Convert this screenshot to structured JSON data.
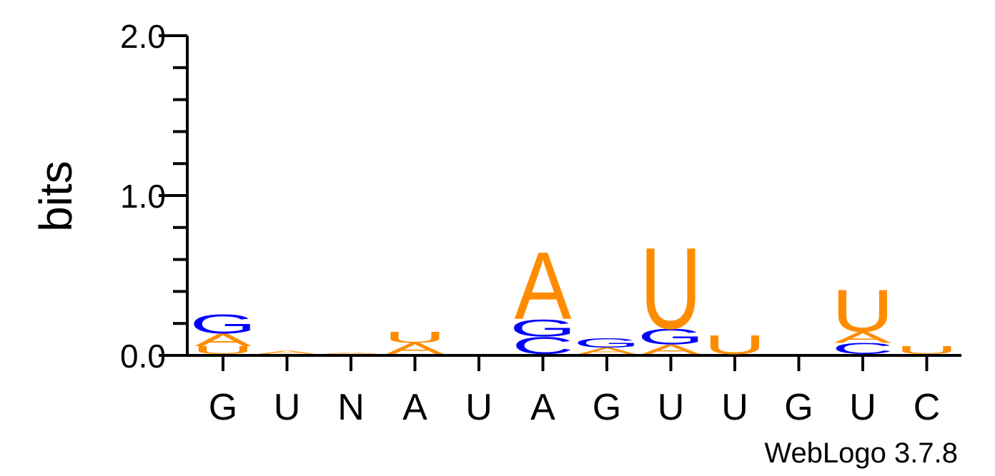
{
  "chart_data": {
    "type": "sequence-logo",
    "ylabel": "bits",
    "ylim": [
      0,
      2
    ],
    "yticks": [
      "0.0",
      "1.0",
      "2.0"
    ],
    "categories": [
      "G",
      "U",
      "N",
      "A",
      "U",
      "A",
      "G",
      "U",
      "U",
      "G",
      "U",
      "C"
    ],
    "colors": {
      "A": "#ff8c00",
      "U": "#ff8c00",
      "G": "#0000ff",
      "C": "#0000ff"
    },
    "stacks": [
      [
        {
          "letter": "U",
          "bits": 0.05
        },
        {
          "letter": "A",
          "bits": 0.08
        },
        {
          "letter": "G",
          "bits": 0.12
        }
      ],
      [
        {
          "letter": "A",
          "bits": 0.02
        }
      ],
      [
        {
          "letter": "A",
          "bits": 0.01
        }
      ],
      [
        {
          "letter": "A",
          "bits": 0.07
        },
        {
          "letter": "U",
          "bits": 0.07
        }
      ],
      [],
      [
        {
          "letter": "C",
          "bits": 0.11
        },
        {
          "letter": "G",
          "bits": 0.11
        },
        {
          "letter": "A",
          "bits": 0.43
        }
      ],
      [
        {
          "letter": "A",
          "bits": 0.04
        },
        {
          "letter": "G",
          "bits": 0.06
        }
      ],
      [
        {
          "letter": "A",
          "bits": 0.06
        },
        {
          "letter": "G",
          "bits": 0.1
        },
        {
          "letter": "U",
          "bits": 0.52
        }
      ],
      [
        {
          "letter": "U",
          "bits": 0.12
        }
      ],
      [],
      [
        {
          "letter": "C",
          "bits": 0.07
        },
        {
          "letter": "A",
          "bits": 0.07
        },
        {
          "letter": "U",
          "bits": 0.27
        }
      ],
      [
        {
          "letter": "U",
          "bits": 0.05
        }
      ]
    ]
  },
  "credit": "WebLogo 3.7.8"
}
